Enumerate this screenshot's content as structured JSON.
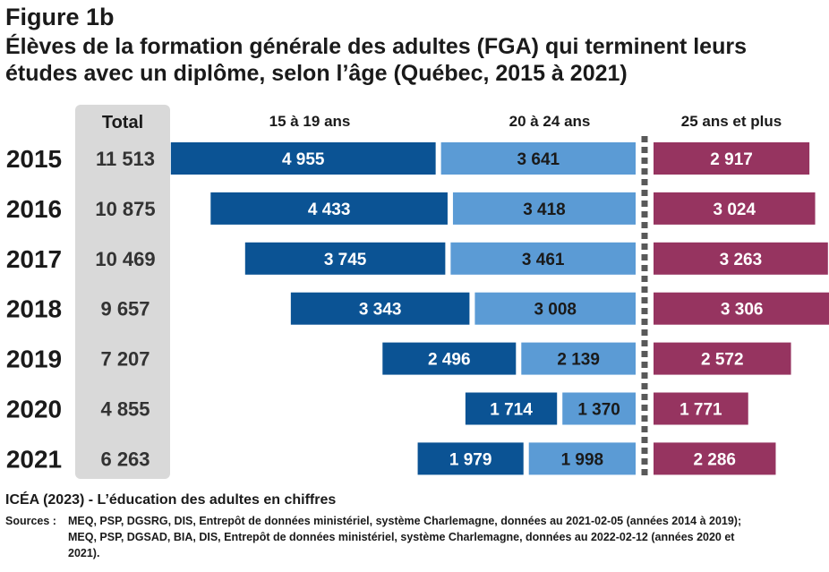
{
  "figure_label": "Figure 1b",
  "title": "Élèves de la formation générale des adultes (FGA) qui terminent leurs études avec un diplôme, selon l’âge (Québec, 2015 à 2021)",
  "source_title": "ICÉA (2023) - L’éducation des adultes en chiffres",
  "sources_label": "Sources :",
  "sources_text": "MEQ, PSP, DGSRG, DIS, Entrepôt de données ministériel, système Charlemagne, données au 2021-02-05 (années 2014 à 2019); MEQ, PSP, DGSAD, BIA, DIS, Entrepôt de données ministériel, système Charlemagne, données au 2022-02-12 (années 2020 et 2021).",
  "colors": {
    "age_15_19": "#0b5394",
    "age_20_24": "#5b9bd5",
    "age_25_plus": "#963460",
    "total_column": "#d9d9d9",
    "divider": "#595959"
  },
  "chart_data": {
    "type": "bar",
    "orientation": "horizontal",
    "total_header": "Total",
    "categories": [
      "2015",
      "2016",
      "2017",
      "2018",
      "2019",
      "2020",
      "2021"
    ],
    "totals": [
      "11 513",
      "10 875",
      "10 469",
      "9 657",
      "7 207",
      "4 855",
      "6 263"
    ],
    "series": [
      {
        "name": "15 à 19 ans",
        "values": [
          4955,
          4433,
          3745,
          3343,
          2496,
          1714,
          1979
        ],
        "labels": [
          "4 955",
          "4 433",
          "3 745",
          "3 343",
          "2 496",
          "1 714",
          "1 979"
        ]
      },
      {
        "name": "20 à 24 ans",
        "values": [
          3641,
          3418,
          3461,
          3008,
          2139,
          1370,
          1998
        ],
        "labels": [
          "3 641",
          "3 418",
          "3 461",
          "3 008",
          "2 139",
          "1 370",
          "1 998"
        ]
      },
      {
        "name": "25 ans et plus",
        "values": [
          2917,
          3024,
          3263,
          3306,
          2572,
          1771,
          2286
        ],
        "labels": [
          "2 917",
          "3 024",
          "3 263",
          "3 306",
          "2 572",
          "1 771",
          "2 286"
        ]
      }
    ]
  }
}
